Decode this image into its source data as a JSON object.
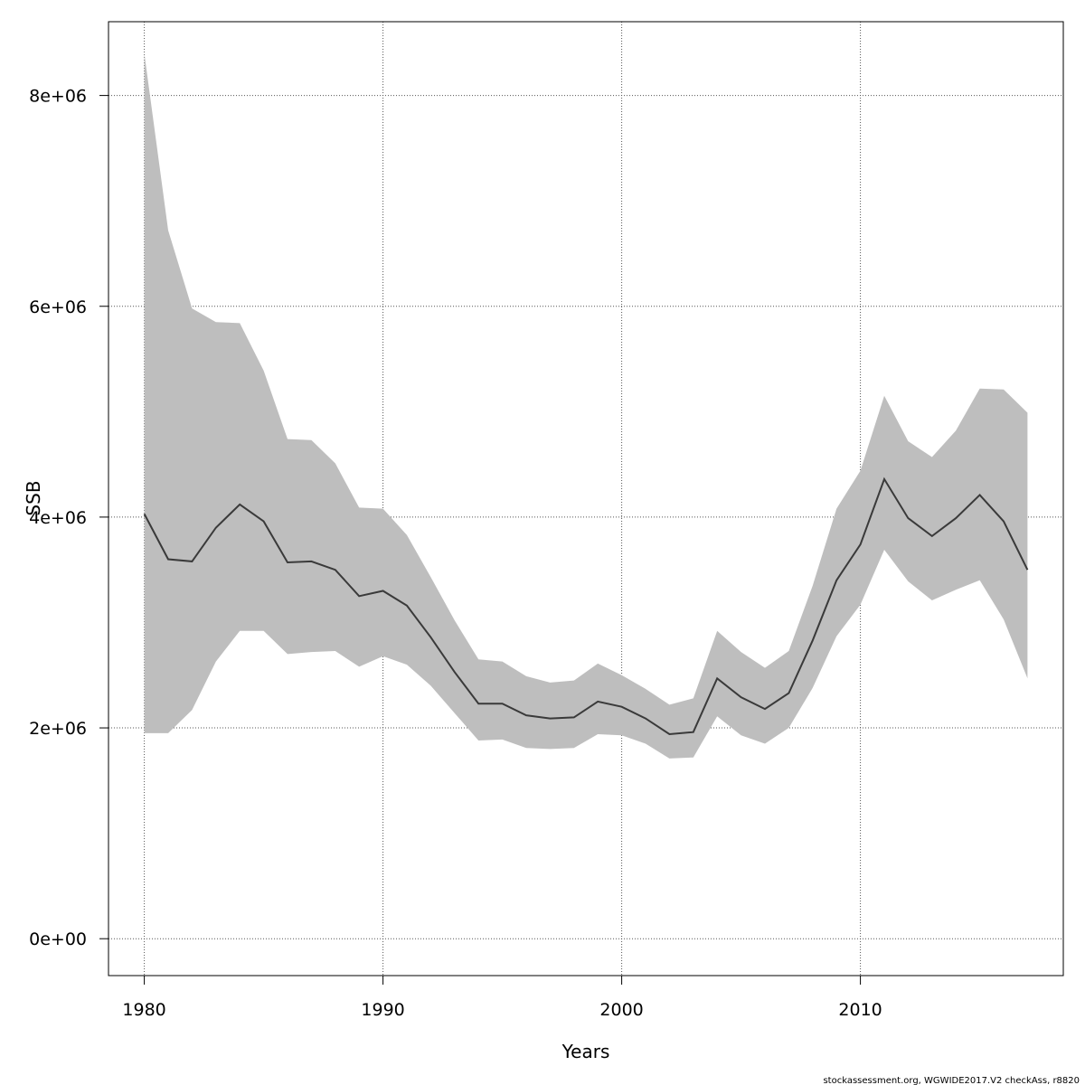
{
  "chart_data": {
    "type": "area",
    "xlabel": "Years",
    "ylabel": "SSB",
    "xlim": [
      1978.5,
      2018.5
    ],
    "ylim": [
      -350000,
      8700000
    ],
    "x_ticks": [
      1980,
      1990,
      2000,
      2010
    ],
    "y_ticks": [
      0,
      2000000,
      4000000,
      6000000,
      8000000
    ],
    "y_tick_labels": [
      "0e+00",
      "2e+06",
      "4e+06",
      "6e+06",
      "8e+06"
    ],
    "grid": true,
    "colors": {
      "band": "#bebebe",
      "line": "#3a3a3a",
      "grid": "#555555"
    },
    "x": [
      1980,
      1981,
      1982,
      1983,
      1984,
      1985,
      1986,
      1987,
      1988,
      1989,
      1990,
      1991,
      1992,
      1993,
      1994,
      1995,
      1996,
      1997,
      1998,
      1999,
      2000,
      2001,
      2002,
      2003,
      2004,
      2005,
      2006,
      2007,
      2008,
      2009,
      2010,
      2011,
      2012,
      2013,
      2014,
      2015,
      2016,
      2017
    ],
    "series": [
      {
        "name": "estimate",
        "values": [
          4030000,
          3600000,
          3580000,
          3900000,
          4120000,
          3960000,
          3570000,
          3580000,
          3500000,
          3250000,
          3300000,
          3160000,
          2860000,
          2530000,
          2230000,
          2230000,
          2120000,
          2090000,
          2100000,
          2250000,
          2200000,
          2090000,
          1940000,
          1960000,
          2470000,
          2290000,
          2180000,
          2330000,
          2830000,
          3400000,
          3740000,
          4360000,
          3990000,
          3820000,
          3990000,
          4210000,
          3960000,
          3500000
        ]
      },
      {
        "name": "upper",
        "values": [
          8400000,
          6720000,
          5980000,
          5850000,
          5840000,
          5390000,
          4740000,
          4730000,
          4510000,
          4090000,
          4080000,
          3830000,
          3430000,
          3020000,
          2650000,
          2630000,
          2490000,
          2430000,
          2450000,
          2610000,
          2500000,
          2370000,
          2220000,
          2280000,
          2920000,
          2720000,
          2570000,
          2730000,
          3350000,
          4080000,
          4440000,
          5150000,
          4720000,
          4570000,
          4820000,
          5220000,
          5210000,
          4990000
        ]
      },
      {
        "name": "lower",
        "values": [
          1950000,
          1950000,
          2170000,
          2630000,
          2920000,
          2920000,
          2700000,
          2720000,
          2730000,
          2580000,
          2680000,
          2600000,
          2400000,
          2140000,
          1880000,
          1890000,
          1810000,
          1800000,
          1810000,
          1940000,
          1930000,
          1850000,
          1710000,
          1720000,
          2110000,
          1930000,
          1850000,
          2000000,
          2380000,
          2870000,
          3170000,
          3690000,
          3390000,
          3210000,
          3310000,
          3400000,
          3030000,
          2470000
        ]
      }
    ]
  },
  "footer": "stockassessment.org, WGWIDE2017.V2  checkAss, r8820"
}
